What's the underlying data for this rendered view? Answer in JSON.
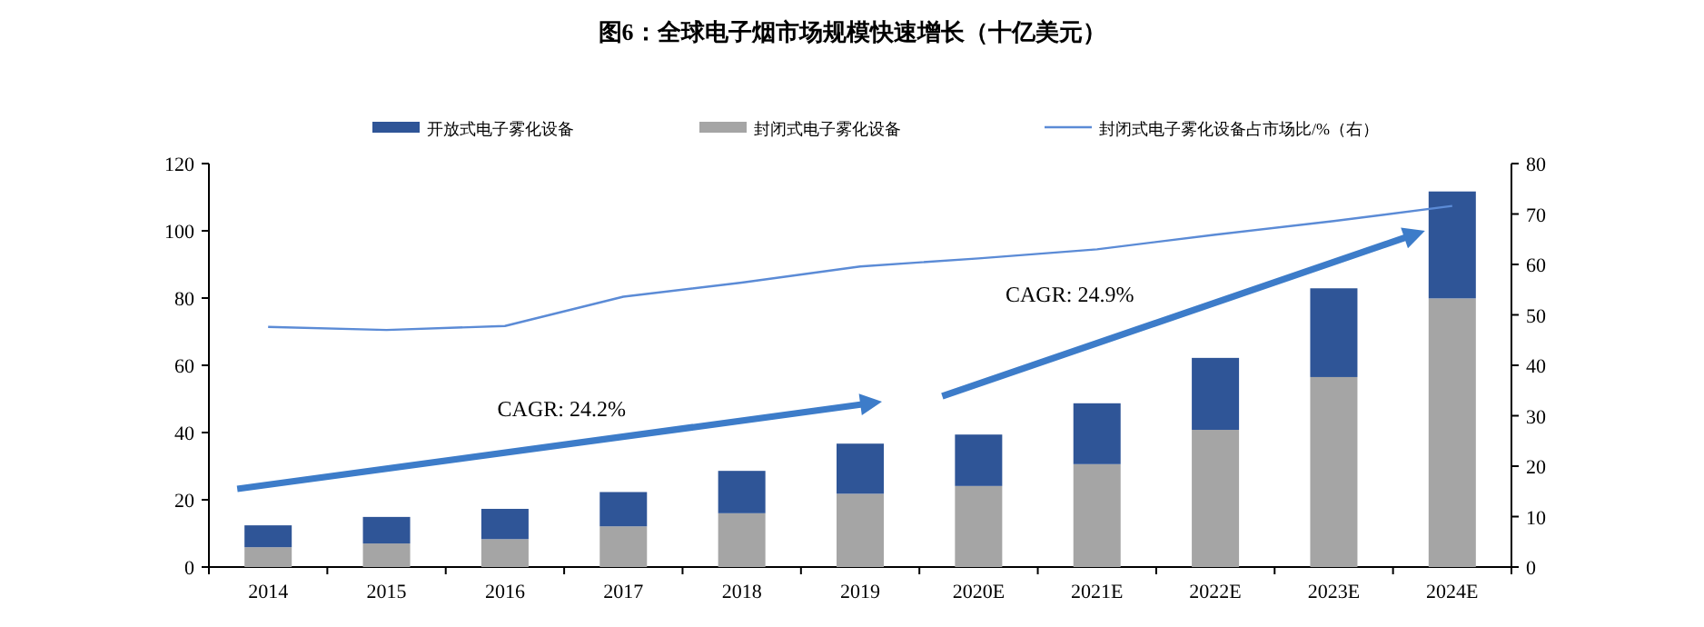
{
  "chart_data": {
    "type": "bar",
    "stacked": true,
    "title": "图6：全球电子烟市场规模快速增长（十亿美元）",
    "categories": [
      "2014",
      "2015",
      "2016",
      "2017",
      "2018",
      "2019",
      "2020E",
      "2021E",
      "2022E",
      "2023E",
      "2024E"
    ],
    "series": [
      {
        "name": "封闭式电子雾化设备",
        "color": "#a5a5a5",
        "values": [
          5.9,
          7.0,
          8.3,
          12.1,
          16.0,
          21.8,
          24.1,
          30.6,
          40.8,
          56.5,
          79.9
        ]
      },
      {
        "name": "开放式电子雾化设备",
        "color": "#2f5597",
        "values": [
          6.5,
          7.9,
          9.0,
          10.2,
          12.6,
          14.9,
          15.3,
          18.1,
          21.4,
          26.4,
          31.8
        ]
      },
      {
        "name": "封闭式电子雾化设备占市场比/%（右）",
        "type": "line",
        "axis": "y2",
        "color": "#5b8bd6",
        "values": [
          47.6,
          47.0,
          47.8,
          53.6,
          56.4,
          59.6,
          61.2,
          63.0,
          65.9,
          68.6,
          71.6
        ]
      }
    ],
    "ylim": [
      0,
      120
    ],
    "yticks": [
      0,
      20,
      40,
      60,
      80,
      100,
      120
    ],
    "y2lim": [
      0,
      80
    ],
    "y2ticks": [
      0,
      10,
      20,
      30,
      40,
      50,
      60,
      70,
      80
    ],
    "legend": "top",
    "annotations": [
      "CAGR: 24.2%",
      "CAGR: 24.9%"
    ]
  }
}
